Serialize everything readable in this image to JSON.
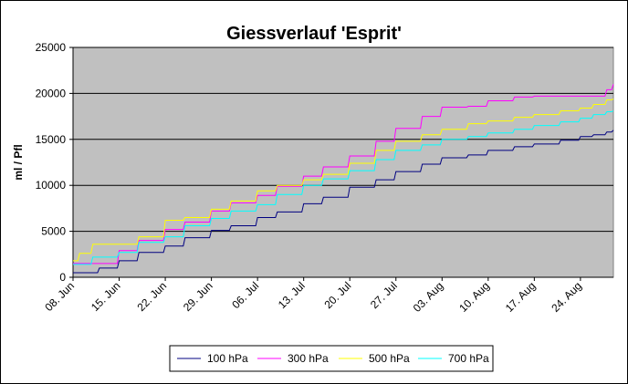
{
  "chart_data": {
    "type": "line",
    "title": "Giessverlauf 'Esprit'",
    "xlabel": "",
    "ylabel": "ml / Pfl",
    "ylim": [
      0,
      25000
    ],
    "yticks": [
      "0",
      "5000",
      "10000",
      "15000",
      "20000",
      "25000"
    ],
    "yticks_values": [
      0,
      5000,
      10000,
      15000,
      20000,
      25000
    ],
    "x_start": "08. Jun",
    "x_end": "29. Aug",
    "xticks": [
      "08. Jun",
      "15. Jun",
      "22. Jun",
      "29. Jun",
      "06. Jul",
      "13. Jul",
      "20. Jul",
      "27. Jul",
      "03. Aug",
      "10. Aug",
      "17. Aug",
      "24. Aug"
    ],
    "grid": true,
    "legend_position": "bottom",
    "series": [
      {
        "name": "100 hPa",
        "color": "#000080",
        "x": [
          "08. Jun",
          "10. Jun",
          "12. Jun",
          "15. Jun",
          "18. Jun",
          "22. Jun",
          "25. Jun",
          "29. Jun",
          "02. Jul",
          "06. Jul",
          "09. Jul",
          "13. Jul",
          "16. Jul",
          "20. Jul",
          "24. Jul",
          "27. Jul",
          "31. Jul",
          "03. Aug",
          "07. Aug",
          "10. Aug",
          "14. Aug",
          "17. Aug",
          "21. Aug",
          "24. Aug",
          "26. Aug",
          "28. Aug",
          "29. Aug"
        ],
        "values": [
          500,
          500,
          1000,
          1800,
          2700,
          3400,
          4300,
          5100,
          5600,
          6500,
          7100,
          8000,
          8700,
          9800,
          10600,
          11500,
          12300,
          13000,
          13300,
          13800,
          14200,
          14500,
          14900,
          15300,
          15500,
          15800,
          16000
        ]
      },
      {
        "name": "300 hPa",
        "color": "#ff00ff",
        "x": [
          "08. Jun",
          "11. Jun",
          "15. Jun",
          "18. Jun",
          "22. Jun",
          "25. Jun",
          "29. Jun",
          "02. Jul",
          "06. Jul",
          "09. Jul",
          "13. Jul",
          "16. Jul",
          "20. Jul",
          "24. Jul",
          "27. Jul",
          "31. Jul",
          "03. Aug",
          "07. Aug",
          "10. Aug",
          "14. Aug",
          "17. Aug",
          "21. Aug",
          "24. Aug",
          "26. Aug",
          "28. Aug",
          "29. Aug"
        ],
        "values": [
          1500,
          1500,
          2900,
          4000,
          5200,
          6000,
          7200,
          8100,
          8900,
          9900,
          11000,
          12000,
          13200,
          14800,
          16200,
          17500,
          18500,
          18600,
          19200,
          19600,
          19700,
          19700,
          19700,
          19700,
          20400,
          21000
        ]
      },
      {
        "name": "500 hPa",
        "color": "#ffff00",
        "x": [
          "08. Jun",
          "09. Jun",
          "11. Jun",
          "15. Jun",
          "18. Jun",
          "22. Jun",
          "25. Jun",
          "29. Jun",
          "02. Jul",
          "06. Jul",
          "09. Jul",
          "13. Jul",
          "16. Jul",
          "20. Jul",
          "24. Jul",
          "27. Jul",
          "31. Jul",
          "03. Aug",
          "07. Aug",
          "10. Aug",
          "14. Aug",
          "17. Aug",
          "21. Aug",
          "24. Aug",
          "26. Aug",
          "28. Aug",
          "29. Aug"
        ],
        "values": [
          1800,
          2600,
          3600,
          3600,
          4400,
          6200,
          6500,
          7400,
          8300,
          9400,
          10000,
          10600,
          11200,
          12400,
          13800,
          14800,
          15500,
          16100,
          16700,
          17000,
          17400,
          17700,
          18100,
          18400,
          18800,
          19300,
          19400
        ]
      },
      {
        "name": "700 hPa",
        "color": "#00ffff",
        "x": [
          "08. Jun",
          "11. Jun",
          "15. Jun",
          "18. Jun",
          "22. Jun",
          "25. Jun",
          "29. Jun",
          "02. Jul",
          "06. Jul",
          "09. Jul",
          "13. Jul",
          "16. Jul",
          "20. Jul",
          "24. Jul",
          "27. Jul",
          "31. Jul",
          "03. Aug",
          "07. Aug",
          "10. Aug",
          "14. Aug",
          "17. Aug",
          "21. Aug",
          "24. Aug",
          "26. Aug",
          "28. Aug",
          "29. Aug"
        ],
        "values": [
          1400,
          2200,
          2700,
          3800,
          4400,
          5600,
          6400,
          7200,
          7900,
          9000,
          10000,
          10700,
          11600,
          12800,
          13800,
          14400,
          15000,
          15300,
          15700,
          16100,
          16500,
          16900,
          17300,
          17700,
          18000,
          18100
        ]
      }
    ]
  }
}
